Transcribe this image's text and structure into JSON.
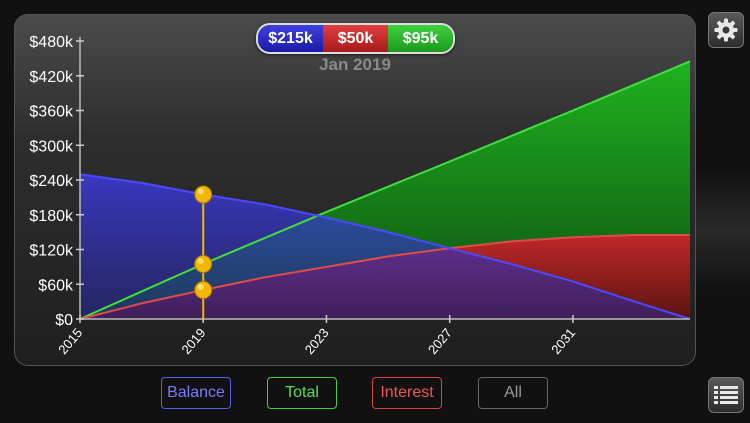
{
  "summary": {
    "balance_value": "$215k",
    "interest_value": "$50k",
    "total_value": "$95k",
    "selected_date": "Jan 2019"
  },
  "filters": {
    "balance_label": "Balance",
    "total_label": "Total",
    "interest_label": "Interest",
    "all_label": "All"
  },
  "icons": {
    "settings": "gear-icon",
    "list": "list-icon"
  },
  "colors": {
    "balance": "#3a3ae0",
    "total": "#2fc72f",
    "interest": "#d03030",
    "marker": "#f2b705"
  },
  "chart_data": {
    "type": "area",
    "x_ticks": [
      "2015",
      "2019",
      "2023",
      "2027",
      "2031"
    ],
    "y_ticks": [
      "$0",
      "$60k",
      "$120k",
      "$180k",
      "$240k",
      "$300k",
      "$360k",
      "$420k",
      "$480k"
    ],
    "ylim": [
      0,
      480
    ],
    "xlim": [
      2015,
      2034.8
    ],
    "selected_x": 2019,
    "series": [
      {
        "name": "Balance",
        "x": [
          2015,
          2017,
          2019,
          2021,
          2023,
          2025,
          2027,
          2029,
          2031,
          2033,
          2034.8
        ],
        "values": [
          250,
          235,
          215,
          198,
          175,
          150,
          122,
          95,
          65,
          30,
          0
        ]
      },
      {
        "name": "Total",
        "x": [
          2015,
          2019,
          2023,
          2027,
          2031,
          2034.8
        ],
        "values": [
          0,
          95,
          185,
          272,
          360,
          445
        ]
      },
      {
        "name": "Interest",
        "x": [
          2015,
          2017,
          2019,
          2021,
          2023,
          2025,
          2027,
          2029,
          2031,
          2033,
          2034.8
        ],
        "values": [
          0,
          27,
          50,
          72,
          90,
          108,
          122,
          134,
          141,
          145,
          145
        ]
      }
    ]
  }
}
